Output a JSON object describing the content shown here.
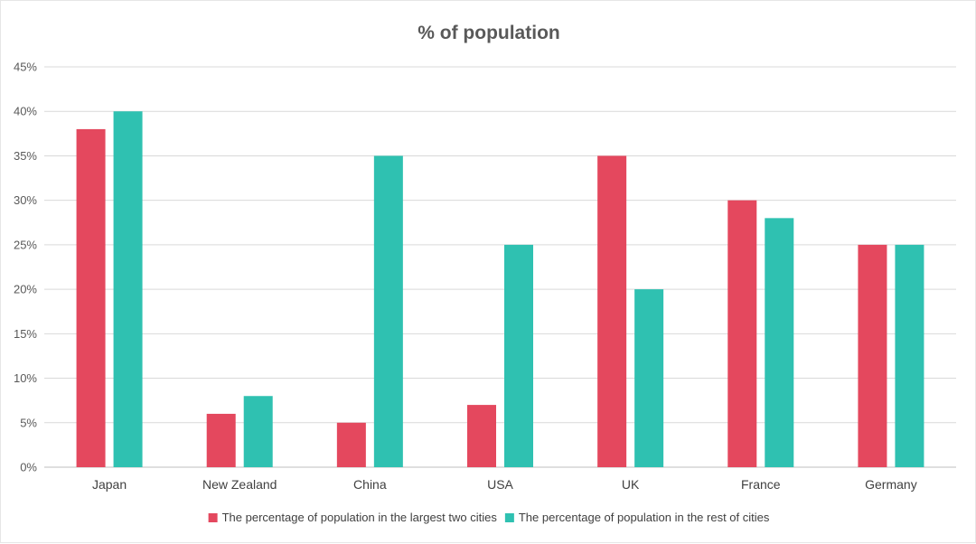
{
  "chart_data": {
    "type": "bar",
    "title": "%  of population",
    "xlabel": "",
    "ylabel": "",
    "ylim": [
      0,
      45
    ],
    "yticks": [
      0,
      5,
      10,
      15,
      20,
      25,
      30,
      35,
      40,
      45
    ],
    "ytick_suffix": "%",
    "grid": true,
    "legend_position": "bottom",
    "categories": [
      "Japan",
      "New Zealand",
      "China",
      "USA",
      "UK",
      "France",
      "Germany"
    ],
    "series": [
      {
        "name": "The percentage of population in the largest two cities",
        "color": "#e4485e",
        "values": [
          38,
          6,
          5,
          7,
          35,
          30,
          25
        ]
      },
      {
        "name": "The percentage of population in the rest of cities",
        "color": "#2fc1b1",
        "values": [
          40,
          8,
          35,
          25,
          20,
          28,
          25
        ]
      }
    ]
  }
}
